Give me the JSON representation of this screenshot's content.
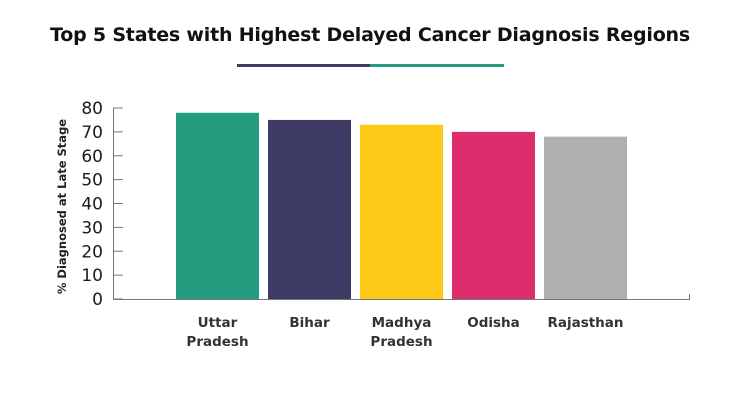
{
  "chart_data": {
    "type": "bar",
    "title": "Top 5 States with Highest Delayed Cancer Diagnosis Regions",
    "ylabel": "% Diagnosed at Late Stage",
    "xlabel": "",
    "categories": [
      [
        "Uttar",
        "Pradesh"
      ],
      [
        "Bihar"
      ],
      [
        "Madhya",
        "Pradesh"
      ],
      [
        "Odisha"
      ],
      [
        "Rajasthan"
      ]
    ],
    "values": [
      78,
      75,
      73,
      70,
      68
    ],
    "colors": [
      "#249c80",
      "#3e3c66",
      "#fdc916",
      "#dc2e6d",
      "#aeafb1"
    ],
    "ylim": [
      0,
      80
    ],
    "yticks": [
      0,
      10,
      20,
      30,
      40,
      50,
      60,
      70,
      80
    ],
    "grid": false,
    "title_underline_colors": [
      "#3e3c66",
      "#249c80"
    ]
  }
}
